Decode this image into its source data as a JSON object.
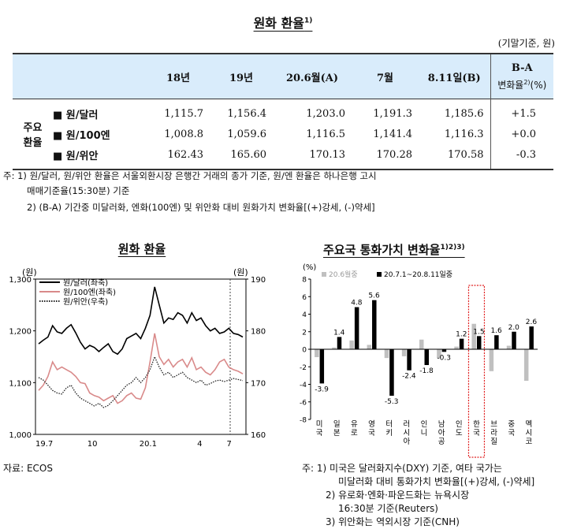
{
  "table_title": "원화 환율",
  "table_title_sup": "1)",
  "basis": "(기말기준, 원)",
  "header": {
    "c1": "18년",
    "c2": "19년",
    "c3": "20.6월(A)",
    "c4": "7월",
    "c5": "8.11일(B)",
    "c6_line1": "B-A",
    "c6_line2": "변화율",
    "c6_sup": "2)",
    "c6_unit": "(%)"
  },
  "group_label_1": "주요",
  "group_label_2": "환율",
  "rows": [
    {
      "label": "■ 원/달러",
      "y18": "1,115.7",
      "y19": "1,156.4",
      "jun": "1,203.0",
      "jul": "1,191.3",
      "aug": "1,185.6",
      "chg": "+1.5"
    },
    {
      "label": "■ 원/100엔",
      "y18": "1,008.8",
      "y19": "1,059.6",
      "jun": "1,116.5",
      "jul": "1,141.4",
      "aug": "1,116.3",
      "chg": "+0.0"
    },
    {
      "label": "■ 원/위안",
      "y18": "162.43",
      "y19": "165.60",
      "jun": "170.13",
      "jul": "170.28",
      "aug": "170.58",
      "chg": "-0.3"
    }
  ],
  "notes": {
    "n1a": "주: 1) 원/달러, 원/위안 환율은 서울외환시장 은행간 거래의 종가 기준, 원/엔 환율은 하나은행 고시",
    "n1b": "매매기준율(15:30분) 기준",
    "n2": "2) (B-A) 기간중 미달러화, 엔화(100엔) 및 위안화 대비 원화가치 변화율[(+)강세, (-)약세]"
  },
  "left_source": "자료: ECOS",
  "right_notes": {
    "n1a": "주:  1) 미국은 달러화지수(DXY) 기준, 여타 국가는",
    "n1b": "미달러화 대비 통화가치 변화율[(+)강세, (-)약세]",
    "n2a": "2) 유로화·엔화·파운드화는 뉴욕시장",
    "n2b": "16:30분 기준(Reuters)",
    "n3": "3) 위안화는 역외시장 기준(CNH)"
  },
  "chart_data": [
    {
      "type": "line",
      "title": "원화 환율",
      "left_unit": "(원)",
      "right_unit": "(원)",
      "left_ticks": [
        "1,300",
        "1,200",
        "1,100",
        "1,000"
      ],
      "left_ylim": [
        1000,
        1300
      ],
      "right_ticks": [
        "190",
        "180",
        "170",
        "160"
      ],
      "right_ylim": [
        160,
        190
      ],
      "x_ticks": [
        "19.7",
        "10",
        "20.1",
        "4",
        "7"
      ],
      "legend_position": "top-left",
      "series": [
        {
          "name": "원/달러(좌축)",
          "axis": "left",
          "color": "#000000",
          "style": "solid",
          "values": [
            1175,
            1182,
            1188,
            1210,
            1198,
            1195,
            1205,
            1212,
            1196,
            1178,
            1165,
            1172,
            1168,
            1160,
            1168,
            1175,
            1160,
            1155,
            1165,
            1185,
            1190,
            1195,
            1185,
            1205,
            1230,
            1285,
            1250,
            1215,
            1225,
            1222,
            1235,
            1230,
            1215,
            1235,
            1220,
            1225,
            1210,
            1200,
            1205,
            1195,
            1198,
            1205,
            1195,
            1193,
            1188
          ]
        },
        {
          "name": "원/100엔(좌축)",
          "axis": "left",
          "color": "#d98a8a",
          "style": "solid",
          "values": [
            1085,
            1095,
            1112,
            1140,
            1125,
            1130,
            1125,
            1120,
            1112,
            1100,
            1098,
            1080,
            1075,
            1072,
            1065,
            1070,
            1075,
            1060,
            1065,
            1075,
            1080,
            1070,
            1068,
            1090,
            1140,
            1195,
            1150,
            1135,
            1145,
            1130,
            1140,
            1145,
            1130,
            1148,
            1125,
            1130,
            1120,
            1115,
            1125,
            1140,
            1145,
            1130,
            1125,
            1122,
            1117
          ]
        },
        {
          "name": "원/위안(우축)",
          "axis": "right",
          "color": "#222222",
          "style": "dotted",
          "values": [
            171,
            170.5,
            169.5,
            168.5,
            168,
            167.8,
            169,
            169.5,
            168,
            167,
            166.5,
            166,
            165.5,
            166,
            165.2,
            165.6,
            166.5,
            167.5,
            168.5,
            169.5,
            170,
            171,
            170,
            171,
            172.5,
            175,
            173,
            171.5,
            172,
            171,
            171.5,
            172,
            171,
            170.5,
            170,
            170.5,
            169.5,
            169.8,
            170.3,
            170.5,
            170.2,
            170.5,
            170.8,
            170.6,
            170.4
          ]
        }
      ]
    },
    {
      "type": "bar",
      "title": "주요국 통화가치 변화율",
      "title_sup": "1)2)3)",
      "unit": "(%)",
      "ylim": [
        -8,
        8
      ],
      "y_ticks": [
        "8",
        "6",
        "4",
        "2",
        "0",
        "-2",
        "-4",
        "-6",
        "-8"
      ],
      "categories": [
        "미국",
        "일본",
        "유로",
        "영국",
        "터키",
        "러시아",
        "인니",
        "남아공",
        "인도",
        "한국",
        "브라질",
        "중국",
        "멕시코"
      ],
      "legend_position": "top",
      "highlight": "한국",
      "series": [
        {
          "name": "20.6월중",
          "color": "#c0c0c0",
          "values": [
            -0.9,
            0.2,
            1.0,
            0.5,
            -1.0,
            -0.8,
            1.1,
            -1.0,
            0.3,
            2.9,
            -2.5,
            0.4,
            -3.6
          ]
        },
        {
          "name": "20.7.1~20.8.11일중",
          "color": "#000000",
          "values": [
            -3.9,
            1.4,
            4.8,
            5.6,
            -5.3,
            -2.4,
            -1.8,
            -0.3,
            1.2,
            1.5,
            1.6,
            2.0,
            2.6
          ]
        }
      ],
      "data_labels": [
        "-3.9",
        "1.4",
        "4.8",
        "5.6",
        "-5.3",
        "-2.4",
        "-1.8",
        "-0.3",
        "1.2",
        "1.5",
        "1.6",
        "2.0",
        "2.6"
      ]
    }
  ]
}
